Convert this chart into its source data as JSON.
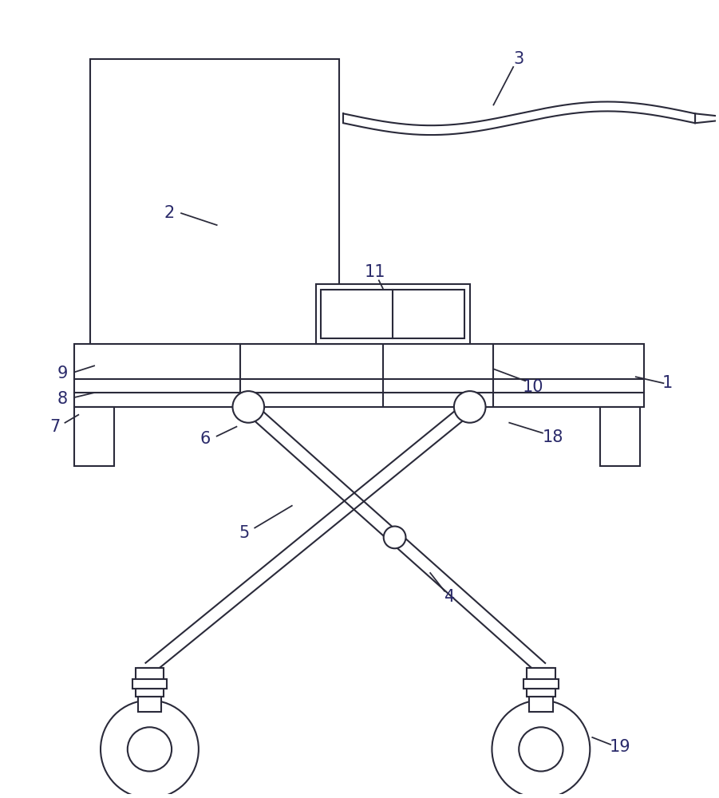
{
  "bg_color": "#ffffff",
  "line_color": "#2a2a3a",
  "line_width": 1.5,
  "label_color": "#2a2a6a",
  "fig_width": 9.01,
  "fig_height": 10.0
}
